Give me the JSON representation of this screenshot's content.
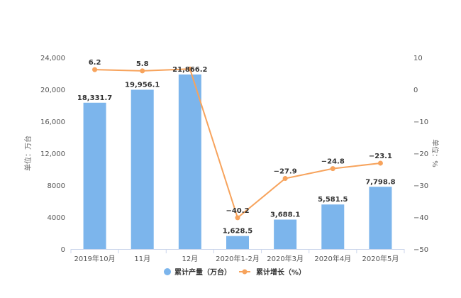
{
  "chart_data": {
    "type": "bar",
    "title": "",
    "categories": [
      "2019年10月",
      "11月",
      "12月",
      "2020年1-2月",
      "2020年3月",
      "2020年4月",
      "2020年5月"
    ],
    "series": [
      {
        "name": "累计产量（万台）",
        "type": "bar",
        "axis": "left",
        "color": "#7cb5ec",
        "values": [
          18331.7,
          19956.1,
          21866.2,
          1628.5,
          3688.1,
          5581.5,
          7798.8
        ],
        "labels": [
          "18,331.7",
          "19,956.1",
          "21,866.2",
          "1,628.5",
          "3,688.1",
          "5,581.5",
          "7,798.8"
        ]
      },
      {
        "name": "累计增长（%）",
        "type": "line",
        "axis": "right",
        "color": "#f7a35c",
        "values": [
          6.2,
          5.8,
          6.4,
          -40.2,
          -27.9,
          -24.8,
          -23.1
        ],
        "labels": [
          "6.2",
          "5.8",
          "",
          "−40.2",
          "−27.9",
          "−24.8",
          "−23.1"
        ]
      }
    ],
    "y_left": {
      "label": "单位：万台",
      "ylim": [
        0,
        24000
      ],
      "ticks": [
        0,
        4000,
        8000,
        12000,
        16000,
        20000,
        24000
      ],
      "tick_labels": [
        "0",
        "4000",
        "8000",
        "12,000",
        "16,000",
        "20,000",
        "24,000"
      ]
    },
    "y_right": {
      "label": "单位：%",
      "ylim": [
        -50,
        10
      ],
      "ticks": [
        -50,
        -40,
        -30,
        -20,
        -10,
        0,
        10
      ],
      "tick_labels": [
        "−50",
        "−40",
        "−30",
        "−20",
        "−10",
        "0",
        "10"
      ]
    },
    "grid": false,
    "legend_position": "bottom"
  }
}
